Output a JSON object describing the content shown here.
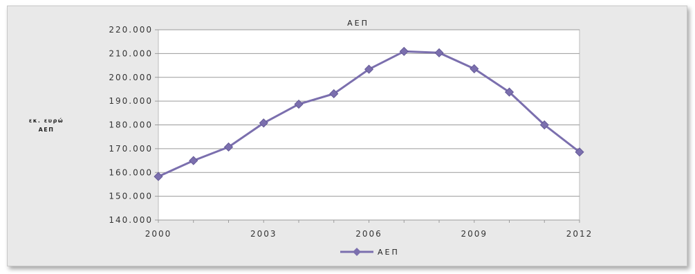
{
  "chart_data": {
    "type": "line",
    "title": "ΑΕΠ",
    "ylabel_lines": [
      "εκ. ευρώ",
      "ΑΕΠ"
    ],
    "xlabel": "",
    "x": [
      2000,
      2001,
      2002,
      2003,
      2004,
      2005,
      2006,
      2007,
      2008,
      2009,
      2010,
      2011,
      2012
    ],
    "xticks": [
      "2000",
      "2003",
      "2006",
      "2009",
      "2012"
    ],
    "yticks": [
      "140.000",
      "150.000",
      "160.000",
      "170.000",
      "180.000",
      "190.000",
      "200.000",
      "210.000",
      "220.000"
    ],
    "ylim": [
      140000,
      220000
    ],
    "xlim": [
      2000,
      2012
    ],
    "grid": true,
    "legend_position": "bottom",
    "series": [
      {
        "name": "ΑΕΠ",
        "color": "#7b6fae",
        "marker": "diamond",
        "values": [
          158300,
          165000,
          170700,
          180800,
          188700,
          193100,
          203400,
          210900,
          210300,
          203600,
          193800,
          180000,
          168600
        ]
      }
    ]
  }
}
